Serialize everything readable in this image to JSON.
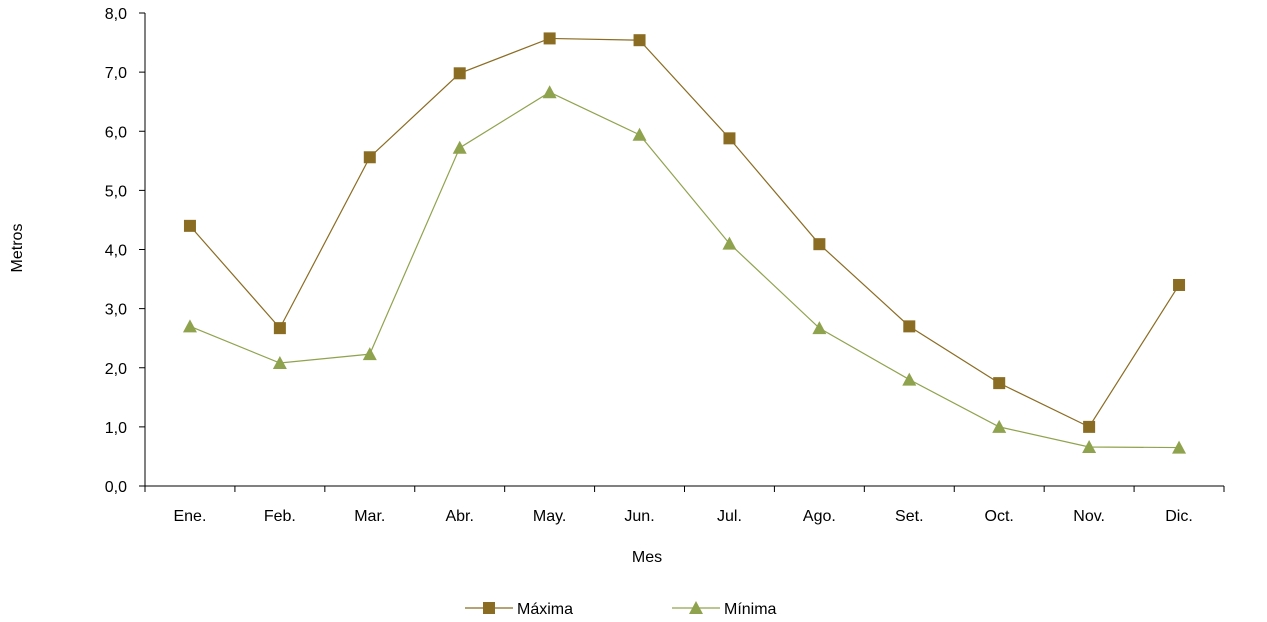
{
  "chart_data": {
    "type": "line",
    "title": "",
    "xlabel": "Mes",
    "ylabel": "Metros",
    "categories": [
      "Ene.",
      "Feb.",
      "Mar.",
      "Abr.",
      "May.",
      "Jun.",
      "Jul.",
      "Ago.",
      "Set.",
      "Oct.",
      "Nov.",
      "Dic."
    ],
    "ylim": [
      0,
      8
    ],
    "yticks": [
      "0,0",
      "1,0",
      "2,0",
      "3,0",
      "4,0",
      "5,0",
      "6,0",
      "7,0",
      "8,0"
    ],
    "grid": false,
    "legend_position": "bottom",
    "series": [
      {
        "name": "Máxima",
        "marker": "square",
        "color": "#8B6C23",
        "line_color": "#8B6C23",
        "values": [
          4.4,
          2.67,
          5.56,
          6.98,
          7.57,
          7.54,
          5.88,
          4.09,
          2.7,
          1.74,
          1.0,
          3.4
        ]
      },
      {
        "name": "Mínima",
        "marker": "triangle",
        "color": "#8FA34E",
        "line_color": "#8FA34E",
        "values": [
          2.7,
          2.08,
          2.23,
          5.72,
          6.66,
          5.94,
          4.1,
          2.67,
          1.8,
          1.0,
          0.66,
          0.65
        ]
      }
    ]
  }
}
